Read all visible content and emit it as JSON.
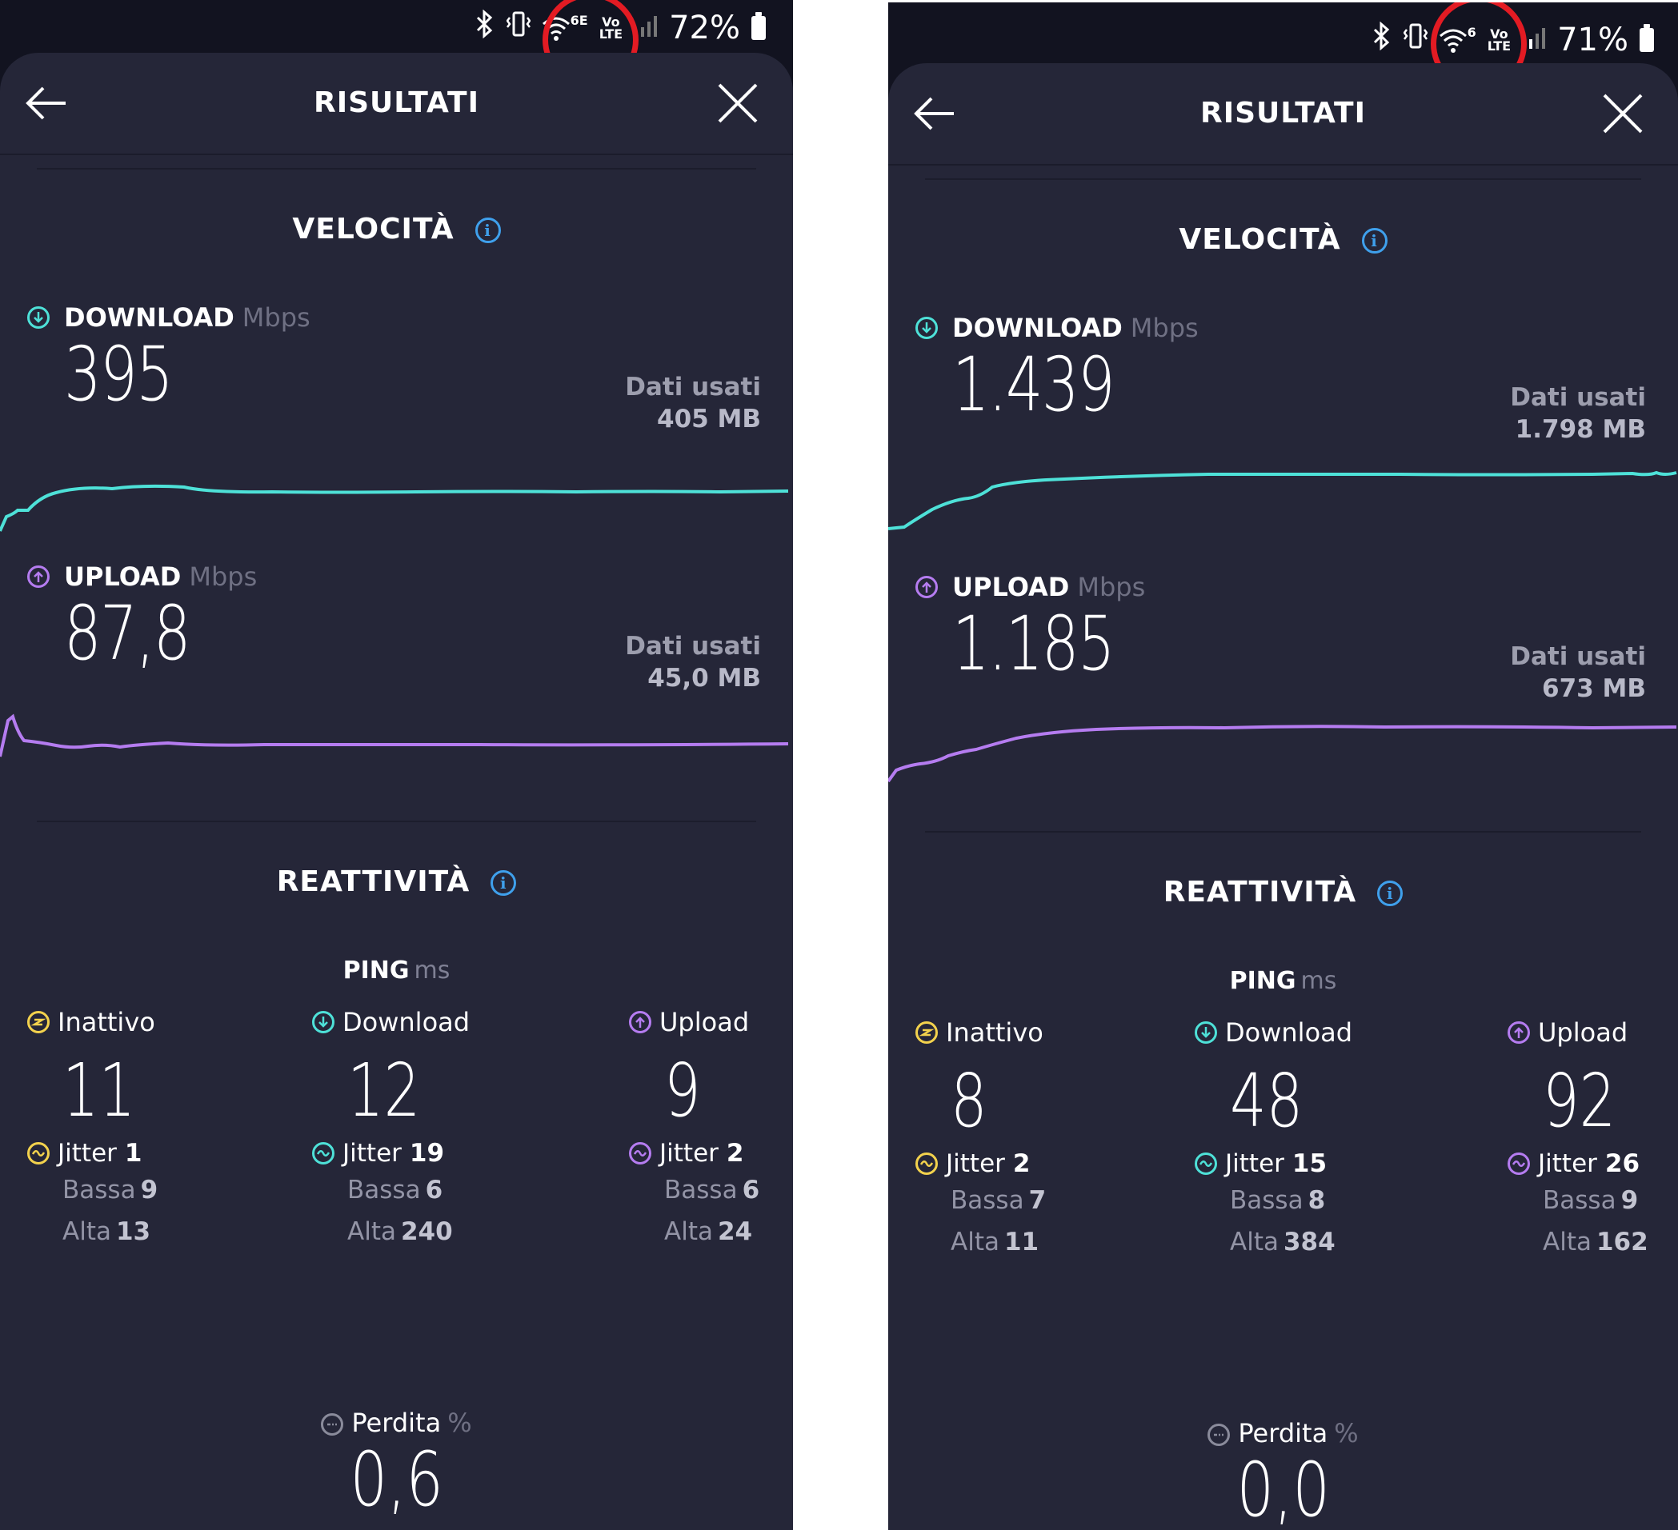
{
  "screens": [
    {
      "status": {
        "battery": "72%",
        "network_badge": "6E",
        "volte": "Vo\nLTE"
      },
      "title": "RISULTATI",
      "speed_title": "VELOCITÀ",
      "download": {
        "label": "DOWNLOAD",
        "unit": "Mbps",
        "value": "395",
        "data_used_label": "Dati usati",
        "data_used": "405 MB"
      },
      "upload": {
        "label": "UPLOAD",
        "unit": "Mbps",
        "value": "87,8",
        "data_used_label": "Dati usati",
        "data_used": "45,0 MB"
      },
      "responsiveness_title": "REATTIVITÀ",
      "ping": {
        "label": "PING",
        "unit": "ms",
        "columns": [
          {
            "label": "Inattivo",
            "value": "11",
            "jitter_label": "Jitter",
            "jitter": "1",
            "low_label": "Bassa",
            "low": "9",
            "high_label": "Alta",
            "high": "13"
          },
          {
            "label": "Download",
            "value": "12",
            "jitter_label": "Jitter",
            "jitter": "19",
            "low_label": "Bassa",
            "low": "6",
            "high_label": "Alta",
            "high": "240"
          },
          {
            "label": "Upload",
            "value": "9",
            "jitter_label": "Jitter",
            "jitter": "2",
            "low_label": "Bassa",
            "low": "6",
            "high_label": "Alta",
            "high": "24"
          }
        ]
      },
      "loss": {
        "label": "Perdita",
        "unit": "%",
        "value": "0,6"
      }
    },
    {
      "status": {
        "battery": "71%",
        "network_badge": "6",
        "volte": "Vo\nLTE"
      },
      "title": "RISULTATI",
      "speed_title": "VELOCITÀ",
      "download": {
        "label": "DOWNLOAD",
        "unit": "Mbps",
        "value": "1.439",
        "data_used_label": "Dati usati",
        "data_used": "1.798 MB"
      },
      "upload": {
        "label": "UPLOAD",
        "unit": "Mbps",
        "value": "1.185",
        "data_used_label": "Dati usati",
        "data_used": "673 MB"
      },
      "responsiveness_title": "REATTIVITÀ",
      "ping": {
        "label": "PING",
        "unit": "ms",
        "columns": [
          {
            "label": "Inattivo",
            "value": "8",
            "jitter_label": "Jitter",
            "jitter": "2",
            "low_label": "Bassa",
            "low": "7",
            "high_label": "Alta",
            "high": "11"
          },
          {
            "label": "Download",
            "value": "48",
            "jitter_label": "Jitter",
            "jitter": "15",
            "low_label": "Bassa",
            "low": "8",
            "high_label": "Alta",
            "high": "384"
          },
          {
            "label": "Upload",
            "value": "92",
            "jitter_label": "Jitter",
            "jitter": "26",
            "low_label": "Bassa",
            "low": "9",
            "high_label": "Alta",
            "high": "162"
          }
        ]
      },
      "loss": {
        "label": "Perdita",
        "unit": "%",
        "value": "0,0"
      }
    }
  ],
  "colors": {
    "download": "#4ee1d8",
    "upload": "#b57cf0",
    "idle": "#f3d24d",
    "info": "#3fa0ec",
    "highlight": "#e31b23"
  },
  "icons": [
    "bluetooth-icon",
    "vibrate-icon",
    "wifi-icon",
    "signal-icon",
    "battery-icon",
    "back-arrow-icon",
    "close-icon",
    "info-icon",
    "download-icon",
    "upload-icon",
    "idle-icon",
    "jitter-icon",
    "loss-icon"
  ]
}
